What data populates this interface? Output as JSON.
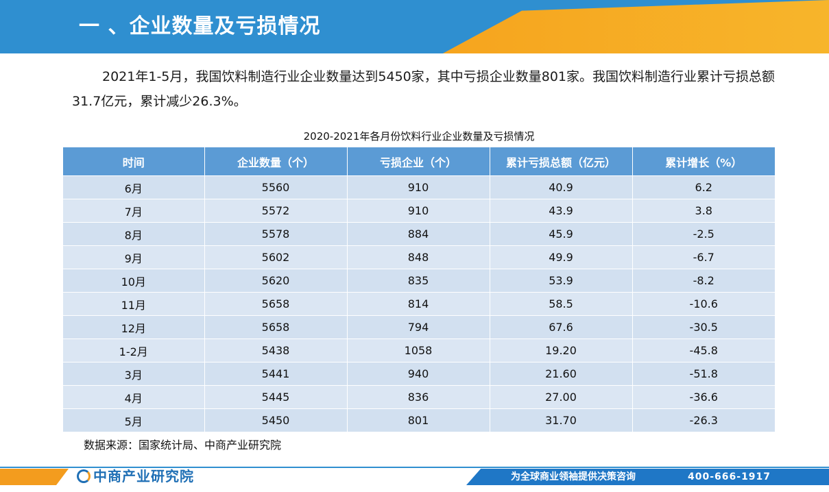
{
  "header": {
    "title": "一 、企业数量及亏损情况",
    "bar_color": "#2f8fd0",
    "accent_color": "#f6a21c"
  },
  "intro_text": "2021年1-5月，我国饮料制造行业企业数量达到5450家，其中亏损企业数量801家。我国饮料制造行业累计亏损总额31.7亿元，累计减少26.3%。",
  "table": {
    "title": "2020-2021年各月份饮料行业企业数量及亏损情况",
    "headers": [
      "时间",
      "企业数量（个）",
      "亏损企业（个）",
      "累计亏损总额（亿元）",
      "累计增长（%）"
    ],
    "rows": [
      [
        "6月",
        "5560",
        "910",
        "40.9",
        "6.2"
      ],
      [
        "7月",
        "5572",
        "910",
        "43.9",
        "3.8"
      ],
      [
        "8月",
        "5578",
        "884",
        "45.9",
        "-2.5"
      ],
      [
        "9月",
        "5602",
        "848",
        "49.9",
        "-6.7"
      ],
      [
        "10月",
        "5620",
        "835",
        "53.9",
        "-8.2"
      ],
      [
        "11月",
        "5658",
        "814",
        "58.5",
        "-10.6"
      ],
      [
        "12月",
        "5658",
        "794",
        "67.6",
        "-30.5"
      ],
      [
        "1-2月",
        "5438",
        "1058",
        "19.20",
        "-45.8"
      ],
      [
        "3月",
        "5441",
        "940",
        "21.60",
        "-51.8"
      ],
      [
        "4月",
        "5445",
        "836",
        "27.00",
        "-36.6"
      ],
      [
        "5月",
        "5450",
        "801",
        "31.70",
        "-26.3"
      ]
    ],
    "header_color": "#5b9bd5",
    "row_color": "#d2e0f0"
  },
  "source": "数据来源：国家统计局、中商产业研究院",
  "footer": {
    "logo_text": "中商产业研究院",
    "slogan": "为全球商业领袖提供决策咨询",
    "phone": "400-666-1917",
    "logo_icon": "company-logo-icon"
  }
}
